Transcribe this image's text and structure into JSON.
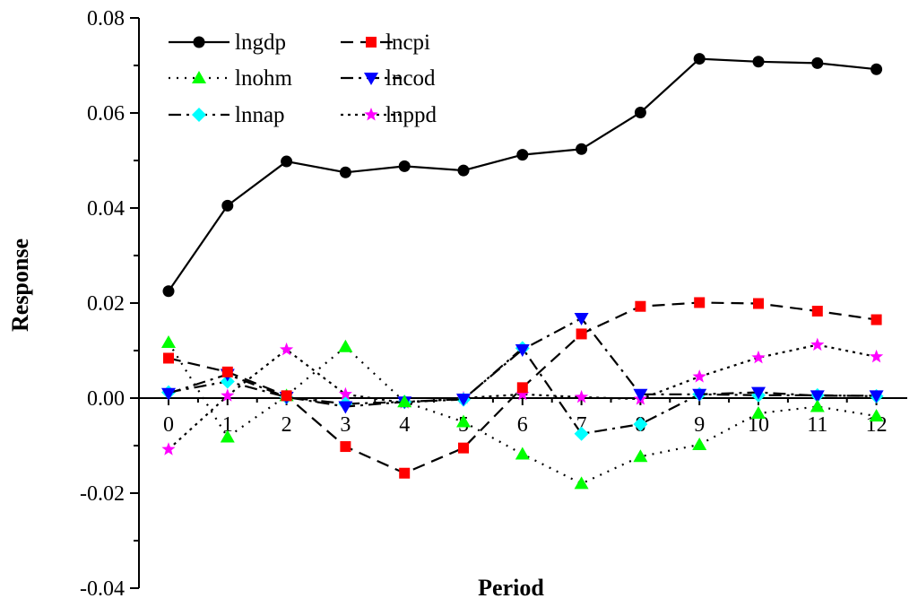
{
  "chart_data": {
    "type": "line",
    "xlabel": "Period",
    "ylabel": "Response",
    "ylim": [
      -0.04,
      0.08
    ],
    "xlim": [
      0,
      12
    ],
    "x": [
      0,
      1,
      2,
      3,
      4,
      5,
      6,
      7,
      8,
      9,
      10,
      11,
      12
    ],
    "xticks": [
      "0",
      "1",
      "2",
      "3",
      "4",
      "5",
      "6",
      "7",
      "8",
      "9",
      "10",
      "11",
      "12"
    ],
    "yticks": [
      "-0.04",
      "-0.02",
      "0.00",
      "0.02",
      "0.04",
      "0.06",
      "0.08"
    ],
    "grid": false,
    "legend_position": "top-left",
    "series": [
      {
        "name": "lngdp",
        "color": "#000000",
        "marker": "circle",
        "dash": "solid",
        "values": [
          0.0225,
          0.0405,
          0.0498,
          0.0475,
          0.0488,
          0.0479,
          0.0512,
          0.0524,
          0.0601,
          0.0714,
          0.0708,
          0.0705,
          0.0692
        ]
      },
      {
        "name": "lncpi",
        "color": "#ff0000",
        "marker": "square",
        "dash": "dash",
        "values": [
          0.0084,
          0.0055,
          0.0005,
          -0.0102,
          -0.0158,
          -0.0105,
          0.0022,
          0.0135,
          0.0193,
          0.0201,
          0.0199,
          0.0183,
          0.0165
        ]
      },
      {
        "name": "lnohm",
        "color": "#00ff00",
        "marker": "triangle-up",
        "dash": "dot",
        "values": [
          0.0117,
          -0.0082,
          0.0005,
          0.0108,
          -0.0008,
          -0.005,
          -0.0118,
          -0.018,
          -0.0123,
          -0.0098,
          -0.0032,
          -0.0018,
          -0.0038
        ]
      },
      {
        "name": "lncod",
        "color": "#0000ff",
        "marker": "triangle-down",
        "dash": "dashdot",
        "values": [
          0.001,
          0.005,
          0.0002,
          -0.0018,
          -0.0008,
          -0.0002,
          0.0102,
          0.0168,
          0.0008,
          0.0008,
          0.0012,
          0.0005,
          0.0005
        ]
      },
      {
        "name": "lnnap",
        "color": "#00ffff",
        "marker": "diamond",
        "dash": "dashdot",
        "values": [
          0.0012,
          0.0035,
          0.0002,
          -0.0012,
          -0.0008,
          -0.0003,
          0.0105,
          -0.0075,
          -0.0055,
          0.0008,
          0.0006,
          0.0006,
          0.0004
        ]
      },
      {
        "name": "lnppd",
        "color": "#ff00ff",
        "marker": "star",
        "dash": "shortdot",
        "values": [
          -0.0108,
          0.0005,
          0.0102,
          0.0008,
          -0.001,
          0.0,
          0.0008,
          0.0002,
          -0.0002,
          0.0045,
          0.0085,
          0.0112,
          0.0087
        ]
      }
    ]
  }
}
